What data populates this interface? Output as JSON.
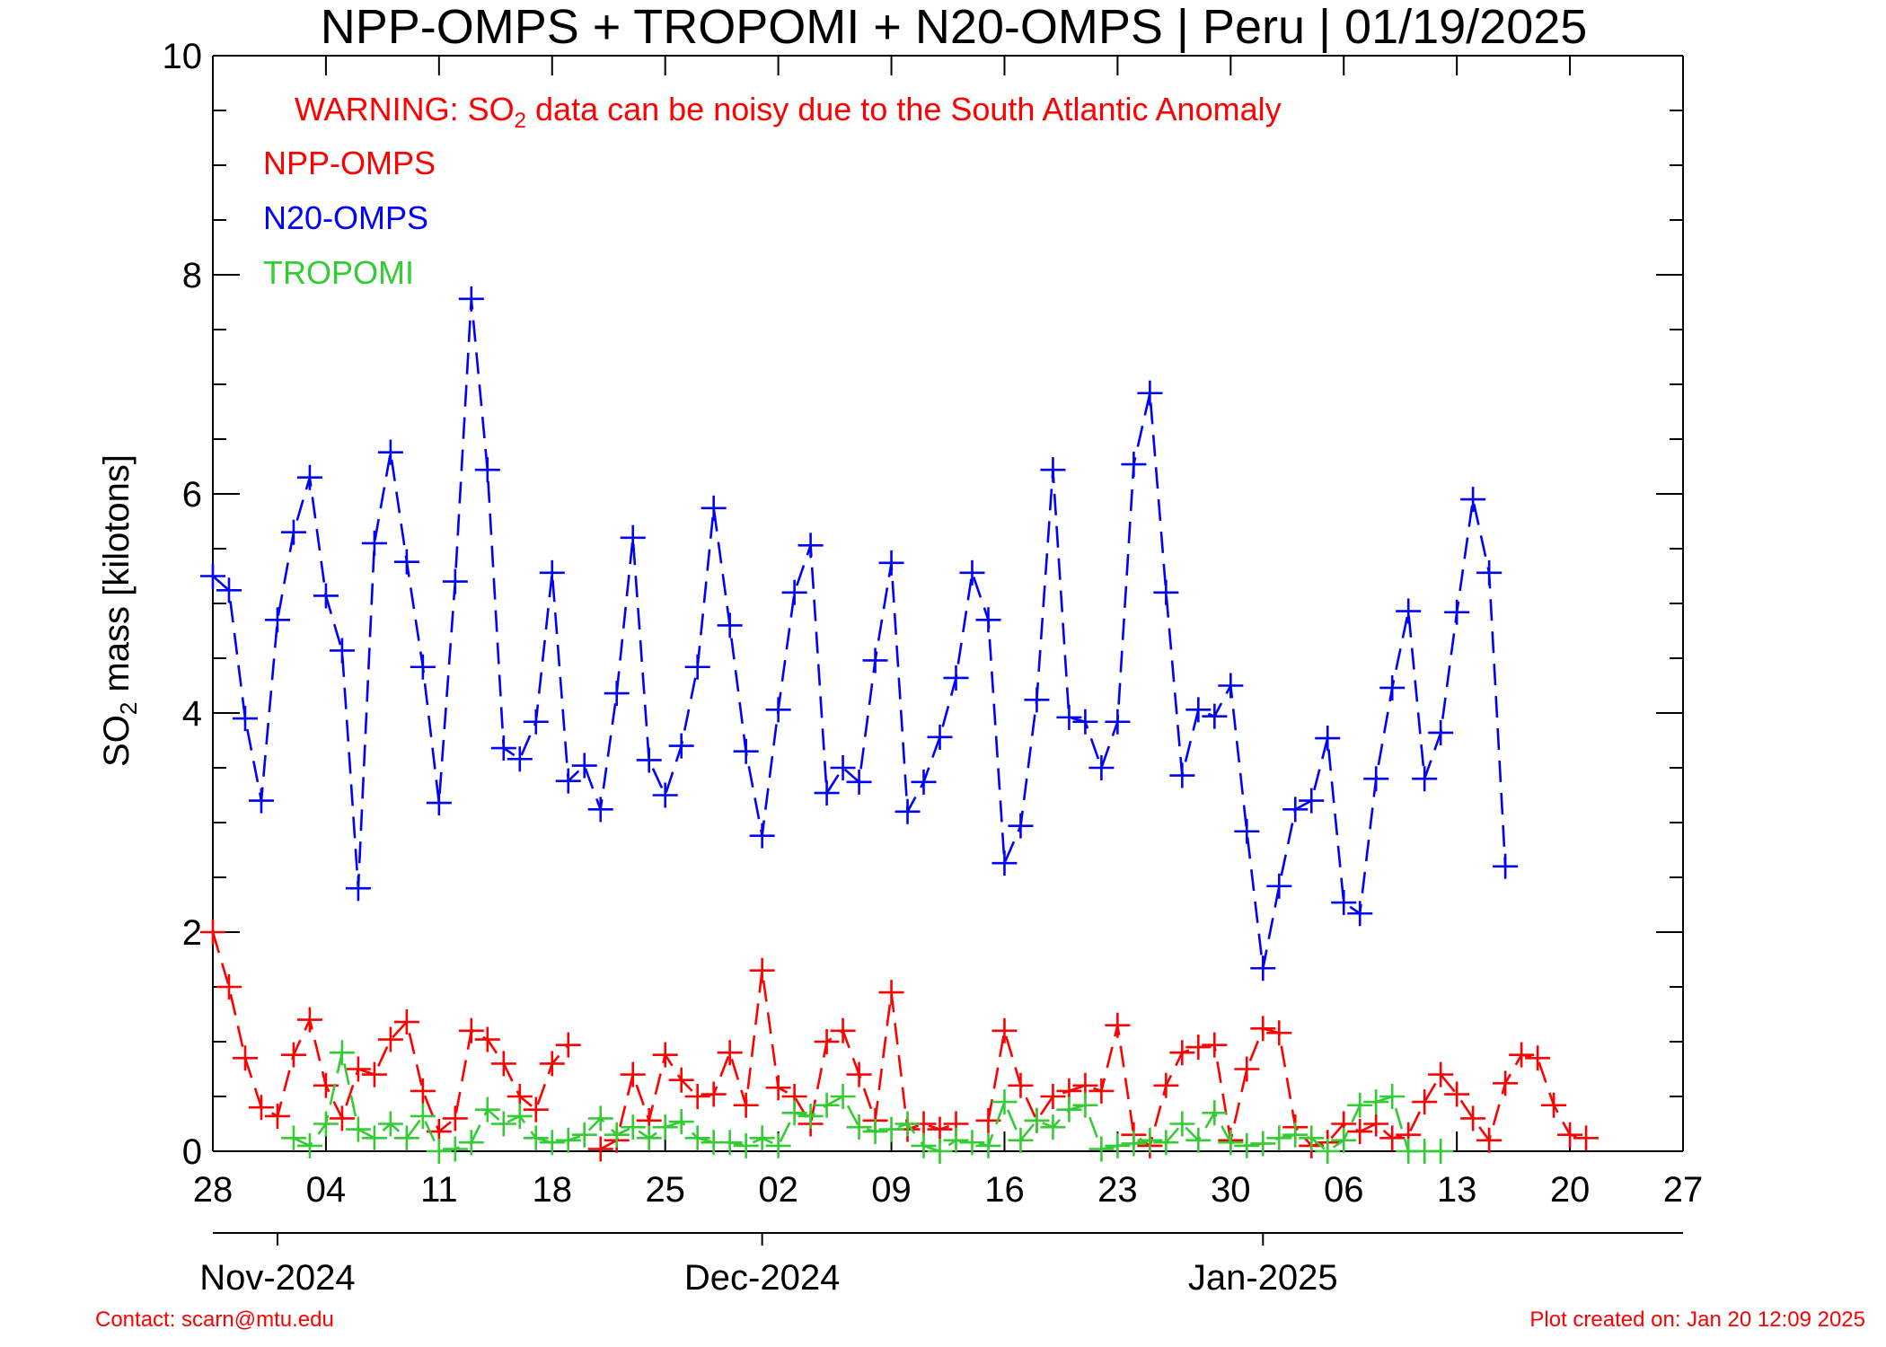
{
  "colors": {
    "npp": "#ff0000",
    "n20": "#0000ff",
    "tropomi": "#33cc33",
    "axis": "#000000",
    "warning": "#ff0000",
    "footer": "#ff0000"
  },
  "chart_data": {
    "type": "line",
    "title": "NPP-OMPS + TROPOMI + N20-OMPS | Peru | 01/19/2025",
    "ylabel_main": "SO",
    "ylabel_sub": "2",
    "ylabel_rest": " mass [kilotons]",
    "ylim": [
      0,
      10
    ],
    "yticks": [
      0,
      2,
      4,
      6,
      8,
      10
    ],
    "xlim_days": [
      0,
      91
    ],
    "x_start_date": "2024-10-28",
    "xtick_labels": [
      "28",
      "04",
      "11",
      "18",
      "25",
      "02",
      "09",
      "16",
      "23",
      "30",
      "06",
      "13",
      "20",
      "27"
    ],
    "months": [
      {
        "label": "Nov-2024",
        "day": 4
      },
      {
        "label": "Dec-2024",
        "day": 34
      },
      {
        "label": "Jan-2025",
        "day": 65
      }
    ],
    "warning": {
      "prefix": "WARNING: SO",
      "sub": "2",
      "suffix": " data can be noisy due to the South Atlantic Anomaly"
    },
    "legend_position": "top-left",
    "grid": false,
    "series": [
      {
        "name": "NPP-OMPS",
        "color": "#ff0000",
        "values": [
          2.0,
          1.5,
          0.85,
          0.4,
          0.32,
          0.88,
          1.2,
          0.6,
          0.3,
          0.75,
          0.7,
          1.02,
          1.18,
          0.55,
          0.18,
          0.3,
          1.1,
          1.02,
          0.8,
          0.5,
          0.38,
          0.8,
          0.97,
          null,
          0.02,
          0.1,
          0.7,
          0.28,
          0.88,
          0.65,
          0.5,
          0.52,
          0.9,
          0.42,
          1.65,
          0.58,
          0.5,
          0.25,
          1.0,
          1.1,
          0.7,
          0.28,
          1.45,
          0.2,
          0.25,
          0.2,
          0.25,
          null,
          0.28,
          1.1,
          0.6,
          0.28,
          0.5,
          0.55,
          0.6,
          0.55,
          1.15,
          0.15,
          0.05,
          0.6,
          0.9,
          0.95,
          0.97,
          0.1,
          0.75,
          1.12,
          1.08,
          0.22,
          0.05,
          0.08,
          0.25,
          0.18,
          0.25,
          0.12,
          0.15,
          0.45,
          0.7,
          0.52,
          0.3,
          0.1,
          0.62,
          0.88,
          0.85,
          0.42,
          0.15,
          0.12
        ]
      },
      {
        "name": "N20-OMPS",
        "color": "#0000ff",
        "values": [
          5.25,
          5.12,
          3.95,
          3.2,
          4.85,
          5.65,
          6.15,
          5.07,
          4.57,
          2.4,
          5.55,
          6.38,
          5.38,
          4.42,
          3.18,
          5.2,
          7.78,
          6.22,
          3.68,
          3.58,
          3.92,
          5.28,
          3.38,
          3.52,
          3.12,
          4.18,
          5.6,
          3.57,
          3.25,
          3.7,
          4.42,
          5.87,
          4.8,
          3.65,
          2.88,
          4.03,
          5.1,
          5.53,
          3.27,
          3.5,
          3.37,
          4.48,
          5.37,
          3.1,
          3.37,
          3.78,
          4.32,
          5.28,
          4.85,
          2.63,
          2.97,
          4.12,
          6.22,
          3.96,
          3.92,
          3.5,
          3.92,
          6.27,
          6.92,
          5.1,
          3.43,
          4.03,
          3.97,
          4.25,
          2.92,
          1.67,
          2.42,
          3.12,
          3.2,
          3.77,
          2.27,
          2.17,
          3.4,
          4.23,
          4.93,
          3.4,
          3.82,
          4.92,
          5.95,
          5.28,
          2.6
        ]
      },
      {
        "name": "TROPOMI",
        "color": "#33cc33",
        "start_day": 5,
        "values": [
          0.12,
          0.05,
          0.25,
          0.9,
          0.2,
          0.12,
          0.25,
          0.12,
          0.32,
          0.0,
          0.02,
          0.08,
          0.38,
          0.25,
          0.32,
          0.12,
          0.08,
          0.1,
          0.15,
          0.3,
          0.15,
          0.22,
          0.12,
          0.22,
          0.27,
          0.12,
          0.08,
          0.08,
          0.05,
          0.12,
          0.05,
          0.35,
          0.32,
          0.42,
          0.5,
          0.22,
          0.18,
          0.2,
          0.25,
          0.05,
          0.0,
          0.1,
          0.08,
          0.05,
          0.45,
          0.1,
          0.28,
          0.22,
          0.38,
          0.42,
          0.02,
          0.05,
          0.07,
          0.1,
          0.08,
          0.25,
          0.1,
          0.35,
          0.08,
          0.05,
          0.07,
          0.12,
          0.15,
          0.12,
          0.0,
          0.1,
          0.42,
          0.45,
          0.5,
          0.0,
          0.0,
          0.0
        ]
      }
    ]
  },
  "footer": {
    "contact": "Contact: scarn@mtu.edu",
    "created": "Plot created on: Jan 20 12:09 2025"
  }
}
